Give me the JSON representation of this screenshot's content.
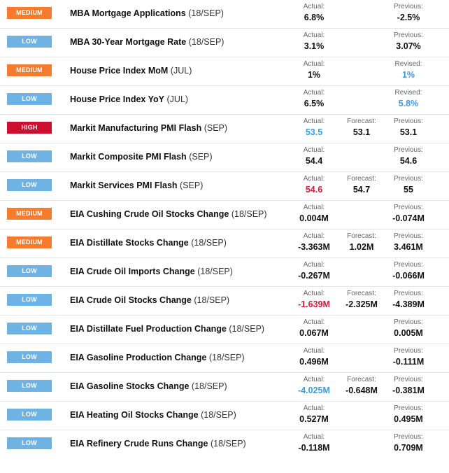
{
  "events": [
    {
      "impact": "MEDIUM",
      "impact_level": "medium",
      "title": "MBA Mortgage Applications",
      "period": "(18/SEP)",
      "actual_label": "Actual:",
      "actual": "6.8%",
      "actual_tone": "",
      "forecast_label": "",
      "forecast": "",
      "previous_label": "Previous:",
      "previous": "-2.5%",
      "previous_tone": ""
    },
    {
      "impact": "LOW",
      "impact_level": "low",
      "title": "MBA 30-Year Mortgage Rate",
      "period": "(18/SEP)",
      "actual_label": "Actual:",
      "actual": "3.1%",
      "actual_tone": "",
      "forecast_label": "",
      "forecast": "",
      "previous_label": "Previous:",
      "previous": "3.07%",
      "previous_tone": ""
    },
    {
      "impact": "MEDIUM",
      "impact_level": "medium",
      "title": "House Price Index MoM",
      "period": "(JUL)",
      "actual_label": "Actual:",
      "actual": "1%",
      "actual_tone": "",
      "forecast_label": "",
      "forecast": "",
      "previous_label": "Revised:",
      "previous": "1%",
      "previous_tone": "pos"
    },
    {
      "impact": "LOW",
      "impact_level": "low",
      "title": "House Price Index YoY",
      "period": "(JUL)",
      "actual_label": "Actual:",
      "actual": "6.5%",
      "actual_tone": "",
      "forecast_label": "",
      "forecast": "",
      "previous_label": "Revised:",
      "previous": "5.8%",
      "previous_tone": "pos"
    },
    {
      "impact": "HIGH",
      "impact_level": "high",
      "title": "Markit Manufacturing PMI Flash",
      "period": "(SEP)",
      "actual_label": "Actual:",
      "actual": "53.5",
      "actual_tone": "pos",
      "forecast_label": "Forecast:",
      "forecast": "53.1",
      "previous_label": "Previous:",
      "previous": "53.1",
      "previous_tone": ""
    },
    {
      "impact": "LOW",
      "impact_level": "low",
      "title": "Markit Composite PMI Flash",
      "period": "(SEP)",
      "actual_label": "Actual:",
      "actual": "54.4",
      "actual_tone": "",
      "forecast_label": "",
      "forecast": "",
      "previous_label": "Previous:",
      "previous": "54.6",
      "previous_tone": ""
    },
    {
      "impact": "LOW",
      "impact_level": "low",
      "title": "Markit Services PMI Flash",
      "period": "(SEP)",
      "actual_label": "Actual:",
      "actual": "54.6",
      "actual_tone": "neg",
      "forecast_label": "Forecast:",
      "forecast": "54.7",
      "previous_label": "Previous:",
      "previous": "55",
      "previous_tone": ""
    },
    {
      "impact": "MEDIUM",
      "impact_level": "medium",
      "title": "EIA Cushing Crude Oil Stocks Change",
      "period": "(18/SEP)",
      "actual_label": "Actual:",
      "actual": "0.004M",
      "actual_tone": "",
      "forecast_label": "",
      "forecast": "",
      "previous_label": "Previous:",
      "previous": "-0.074M",
      "previous_tone": ""
    },
    {
      "impact": "MEDIUM",
      "impact_level": "medium",
      "title": "EIA Distillate Stocks Change",
      "period": "(18/SEP)",
      "actual_label": "Actual:",
      "actual": "-3.363M",
      "actual_tone": "",
      "forecast_label": "Forecast:",
      "forecast": "1.02M",
      "previous_label": "Previous:",
      "previous": "3.461M",
      "previous_tone": ""
    },
    {
      "impact": "LOW",
      "impact_level": "low",
      "title": "EIA Crude Oil Imports Change",
      "period": "(18/SEP)",
      "actual_label": "Actual:",
      "actual": "-0.267M",
      "actual_tone": "",
      "forecast_label": "",
      "forecast": "",
      "previous_label": "Previous:",
      "previous": "-0.066M",
      "previous_tone": ""
    },
    {
      "impact": "LOW",
      "impact_level": "low",
      "title": "EIA Crude Oil Stocks Change",
      "period": "(18/SEP)",
      "actual_label": "Actual:",
      "actual": "-1.639M",
      "actual_tone": "neg",
      "forecast_label": "Forecast:",
      "forecast": "-2.325M",
      "previous_label": "Previous:",
      "previous": "-4.389M",
      "previous_tone": ""
    },
    {
      "impact": "LOW",
      "impact_level": "low",
      "title": "EIA Distillate Fuel Production Change",
      "period": "(18/SEP)",
      "actual_label": "Actual:",
      "actual": "0.067M",
      "actual_tone": "",
      "forecast_label": "",
      "forecast": "",
      "previous_label": "Previous:",
      "previous": "0.005M",
      "previous_tone": ""
    },
    {
      "impact": "LOW",
      "impact_level": "low",
      "title": "EIA Gasoline Production Change",
      "period": "(18/SEP)",
      "actual_label": "Actual:",
      "actual": "0.496M",
      "actual_tone": "",
      "forecast_label": "",
      "forecast": "",
      "previous_label": "Previous:",
      "previous": "-0.111M",
      "previous_tone": ""
    },
    {
      "impact": "LOW",
      "impact_level": "low",
      "title": "EIA Gasoline Stocks Change",
      "period": "(18/SEP)",
      "actual_label": "Actual:",
      "actual": "-4.025M",
      "actual_tone": "pos",
      "forecast_label": "Forecast:",
      "forecast": "-0.648M",
      "previous_label": "Previous:",
      "previous": "-0.381M",
      "previous_tone": ""
    },
    {
      "impact": "LOW",
      "impact_level": "low",
      "title": "EIA Heating Oil Stocks Change",
      "period": "(18/SEP)",
      "actual_label": "Actual:",
      "actual": "0.527M",
      "actual_tone": "",
      "forecast_label": "",
      "forecast": "",
      "previous_label": "Previous:",
      "previous": "0.495M",
      "previous_tone": ""
    },
    {
      "impact": "LOW",
      "impact_level": "low",
      "title": "EIA Refinery Crude Runs Change",
      "period": "(18/SEP)",
      "actual_label": "Actual:",
      "actual": "-0.118M",
      "actual_tone": "",
      "forecast_label": "",
      "forecast": "",
      "previous_label": "Previous:",
      "previous": "0.709M",
      "previous_tone": ""
    }
  ],
  "colors": {
    "medium": "#f47c30",
    "low": "#6eb3e3",
    "high": "#cc0f2e",
    "positive": "#3d9be0",
    "negative": "#cc1f3a"
  }
}
